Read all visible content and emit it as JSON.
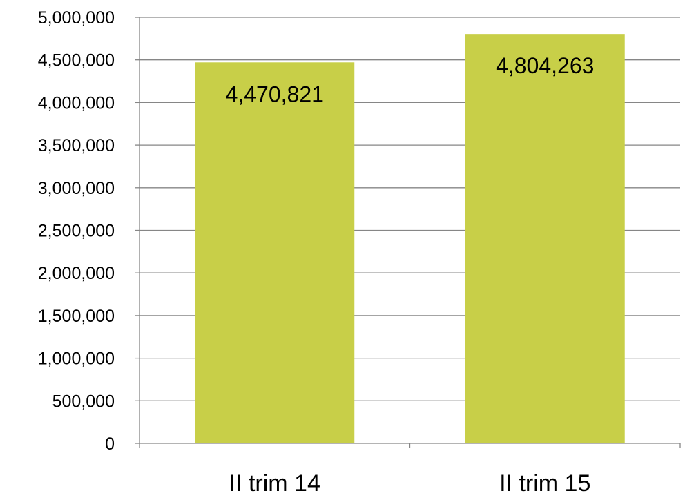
{
  "chart_data": {
    "type": "bar",
    "categories": [
      "II trim 14",
      "II trim 15"
    ],
    "values": [
      4470821,
      4804263
    ],
    "value_labels": [
      "4,470,821",
      "4,804,263"
    ],
    "ylim": [
      0,
      5000000
    ],
    "yticks": [
      0,
      500000,
      1000000,
      1500000,
      2000000,
      2500000,
      3000000,
      3500000,
      4000000,
      4500000,
      5000000
    ],
    "ytick_labels": [
      "0",
      "500,000",
      "1,000,000",
      "1,500,000",
      "2,000,000",
      "2,500,000",
      "3,000,000",
      "3,500,000",
      "4,000,000",
      "4,500,000",
      "5,000,000"
    ],
    "grid": true,
    "legend": "none",
    "colors": {
      "bar": "#c8cf48",
      "grid": "#868686",
      "axis": "#868686"
    }
  }
}
